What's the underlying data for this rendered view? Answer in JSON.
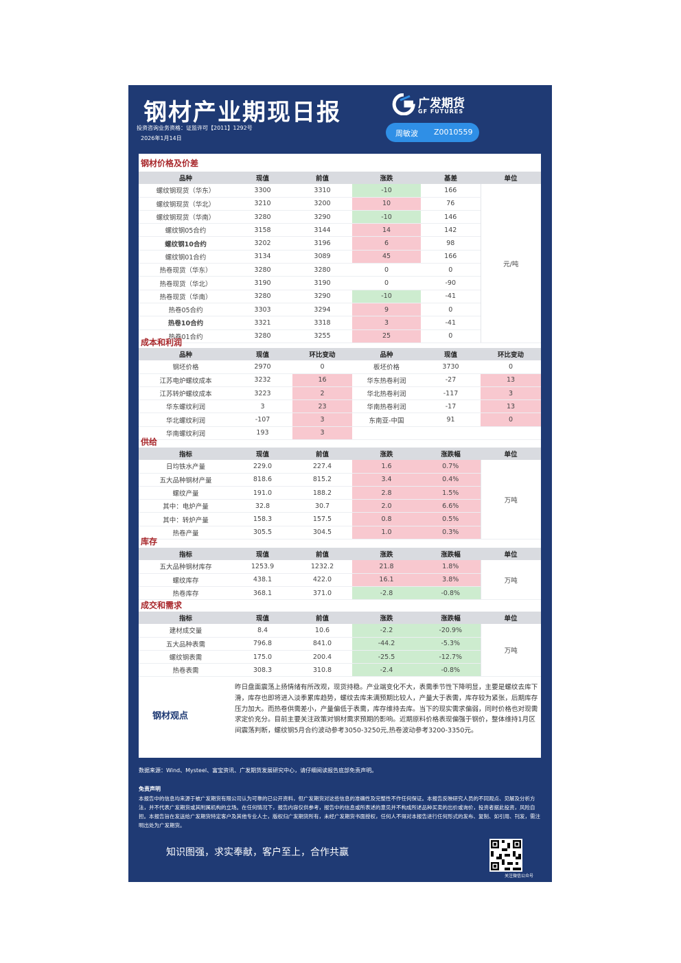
{
  "header": {
    "title": "钢材产业期现日报",
    "license": "投资咨询业务资格：证监许可【2011】1292号",
    "date": "2026年1月14日",
    "logo_cn": "广发期货",
    "logo_en": "GF FUTURES",
    "analyst_name": "周敏波",
    "analyst_id": "Z0010559",
    "brand_color": "#1f3a74"
  },
  "prices": {
    "title": "钢材价格及价差",
    "headers": [
      "品种",
      "现值",
      "前值",
      "涨跌",
      "基差",
      "单位"
    ],
    "unit": "元/吨",
    "rows": [
      {
        "name": "螺纹钢现货（华东）",
        "cur": "3300",
        "prev": "3310",
        "chg": "-10",
        "basis": "166",
        "dir": "dn"
      },
      {
        "name": "螺纹钢现货（华北）",
        "cur": "3210",
        "prev": "3200",
        "chg": "10",
        "basis": "76",
        "dir": "up"
      },
      {
        "name": "螺纹钢现货（华南）",
        "cur": "3280",
        "prev": "3290",
        "chg": "-10",
        "basis": "146",
        "dir": "dn"
      },
      {
        "name": "螺纹钢05合约",
        "cur": "3158",
        "prev": "3144",
        "chg": "14",
        "basis": "142",
        "dir": "up"
      },
      {
        "name": "螺纹钢10合约",
        "cur": "3202",
        "prev": "3196",
        "chg": "6",
        "basis": "98",
        "dir": "up",
        "hl": true
      },
      {
        "name": "螺纹钢01合约",
        "cur": "3134",
        "prev": "3089",
        "chg": "45",
        "basis": "166",
        "dir": "up"
      },
      {
        "name": "热卷现货（华东）",
        "cur": "3280",
        "prev": "3280",
        "chg": "0",
        "basis": "0",
        "dir": ""
      },
      {
        "name": "热卷现货（华北）",
        "cur": "3190",
        "prev": "3190",
        "chg": "0",
        "basis": "-90",
        "dir": ""
      },
      {
        "name": "热卷现货（华南）",
        "cur": "3280",
        "prev": "3290",
        "chg": "-10",
        "basis": "-41",
        "dir": "dn"
      },
      {
        "name": "热卷05合约",
        "cur": "3303",
        "prev": "3294",
        "chg": "9",
        "basis": "0",
        "dir": "up"
      },
      {
        "name": "热卷10合约",
        "cur": "3321",
        "prev": "3318",
        "chg": "3",
        "basis": "-41",
        "dir": "up",
        "hl": true
      },
      {
        "name": "热卷01合约",
        "cur": "3280",
        "prev": "3255",
        "chg": "25",
        "basis": "0",
        "dir": "up"
      }
    ]
  },
  "profit": {
    "title": "成本和利润",
    "headers": [
      "品种",
      "现值",
      "环比变动",
      "品种",
      "现值",
      "环比变动"
    ],
    "rows": [
      {
        "n1": "钢坯价格",
        "v1": "2970",
        "c1": "0",
        "d1": "",
        "n2": "板坯价格",
        "v2": "3730",
        "c2": "0",
        "d2": ""
      },
      {
        "n1": "江苏电炉螺纹成本",
        "v1": "3232",
        "c1": "16",
        "d1": "up",
        "n2": "华东热卷利润",
        "v2": "-27",
        "c2": "13",
        "d2": "up"
      },
      {
        "n1": "江苏转炉螺纹成本",
        "v1": "3223",
        "c1": "2",
        "d1": "up",
        "n2": "华北热卷利润",
        "v2": "-117",
        "c2": "3",
        "d2": "up"
      },
      {
        "n1": "华东螺纹利润",
        "v1": "3",
        "c1": "23",
        "d1": "up",
        "n2": "华南热卷利润",
        "v2": "-17",
        "c2": "13",
        "d2": "up"
      },
      {
        "n1": "华北螺纹利润",
        "v1": "-107",
        "c1": "3",
        "d1": "up",
        "n2": "东南亚-中国",
        "v2": "91",
        "c2": "0",
        "d2": "up"
      },
      {
        "n1": "华南螺纹利润",
        "v1": "193",
        "c1": "3",
        "d1": "up",
        "n2": "",
        "v2": "",
        "c2": "",
        "d2": "blank"
      }
    ]
  },
  "supply": {
    "title": "供给",
    "headers": [
      "指标",
      "现值",
      "前值",
      "涨跌",
      "涨跌幅",
      "单位"
    ],
    "unit": "万吨",
    "rows": [
      {
        "name": "日均铁水产量",
        "cur": "229.0",
        "prev": "227.4",
        "chg": "1.6",
        "pct": "0.7%",
        "dir": "up"
      },
      {
        "name": "五大品种钢材产量",
        "cur": "818.6",
        "prev": "815.2",
        "chg": "3.4",
        "pct": "0.4%",
        "dir": "up"
      },
      {
        "name": "螺纹产量",
        "cur": "191.0",
        "prev": "188.2",
        "chg": "2.8",
        "pct": "1.5%",
        "dir": "up"
      },
      {
        "name": "其中：电炉产量",
        "cur": "32.8",
        "prev": "30.7",
        "chg": "2.0",
        "pct": "6.6%",
        "dir": "up"
      },
      {
        "name": "其中：转炉产量",
        "cur": "158.3",
        "prev": "157.5",
        "chg": "0.8",
        "pct": "0.5%",
        "dir": "up"
      },
      {
        "name": "热卷产量",
        "cur": "305.5",
        "prev": "304.5",
        "chg": "1.0",
        "pct": "0.3%",
        "dir": "up"
      }
    ]
  },
  "inventory": {
    "title": "库存",
    "headers": [
      "指标",
      "现值",
      "前值",
      "涨跌",
      "涨跌幅",
      "单位"
    ],
    "unit": "万吨",
    "rows": [
      {
        "name": "五大品种钢材库存",
        "cur": "1253.9",
        "prev": "1232.2",
        "chg": "21.8",
        "pct": "1.8%",
        "dir": "up"
      },
      {
        "name": "螺纹库存",
        "cur": "438.1",
        "prev": "422.0",
        "chg": "16.1",
        "pct": "3.8%",
        "dir": "up"
      },
      {
        "name": "热卷库存",
        "cur": "368.1",
        "prev": "371.0",
        "chg": "-2.8",
        "pct": "-0.8%",
        "dir": "dn"
      }
    ]
  },
  "demand": {
    "title": "成交和需求",
    "headers": [
      "指标",
      "现值",
      "前值",
      "涨跌",
      "涨跌幅",
      "单位"
    ],
    "unit": "万吨",
    "rows": [
      {
        "name": "建材成交量",
        "cur": "8.4",
        "prev": "10.6",
        "chg": "-2.2",
        "pct": "-20.9%",
        "dir": "dn"
      },
      {
        "name": "五大品种表需",
        "cur": "796.8",
        "prev": "841.0",
        "chg": "-44.2",
        "pct": "-5.3%",
        "dir": "dn"
      },
      {
        "name": "螺纹钢表需",
        "cur": "175.0",
        "prev": "200.4",
        "chg": "-25.5",
        "pct": "-12.7%",
        "dir": "dn"
      },
      {
        "name": "热卷表需",
        "cur": "308.3",
        "prev": "310.8",
        "chg": "-2.4",
        "pct": "-0.8%",
        "dir": "dn"
      }
    ]
  },
  "view": {
    "label": "钢材观点",
    "text": "昨日盘面震荡上扬情绪有所改观，现货持稳。产业端变化不大，表需季节性下降明显，主要是螺纹去库下滑，库存也即将进入淡季累库趋势，螺纹去库未满预期比较人，产量大于表需，库存较为紧张，后期库存压力加大。而热卷供需差小，产量偏低于表需，库存维持去库。当下的现实需求偏弱，同时价格也对现需求定价充分。目前主要关注政策对钢材需求预期的影响。近期原料价格表现偏强于钢价，整体维持1月区间震荡判断，螺纹钢5月合约波动参考3050-3250元,热卷波动参考3200-3350元。"
  },
  "footer": {
    "source": "数据来源：Wind、Mysteel、富宝资讯、广发期货发展研究中心，请仔细阅读报告底部免责声明。",
    "disclaimer_title": "免责声明",
    "disclaimer": "本报告中的信息均来源于被广发期货有限公司认为可靠的已公开资料，但广发期货对这些信息的准确性及完整性不作任何保证。本报告反映研究人员的不同观点、见解及分析方法，并不代表广发期货或其附属机构的立场。在任何情况下，报告内容仅供参考，报告中的信息或所表述的意见并不构成所述品种买卖的出价或询价，投资者据此投资，风险自担。本报告旨在发送给广发期货特定客户及其他专业人士，版权归广发期货所有，未经广发期货书面授权，任何人不得对本报告进行任何形式的发布、复制、如引用、刊发，需注明出处为广发期货。",
    "slogan": "知识图强，求实奉献，客户至上，合作共赢",
    "qr_caption": "关注微信公众号"
  }
}
